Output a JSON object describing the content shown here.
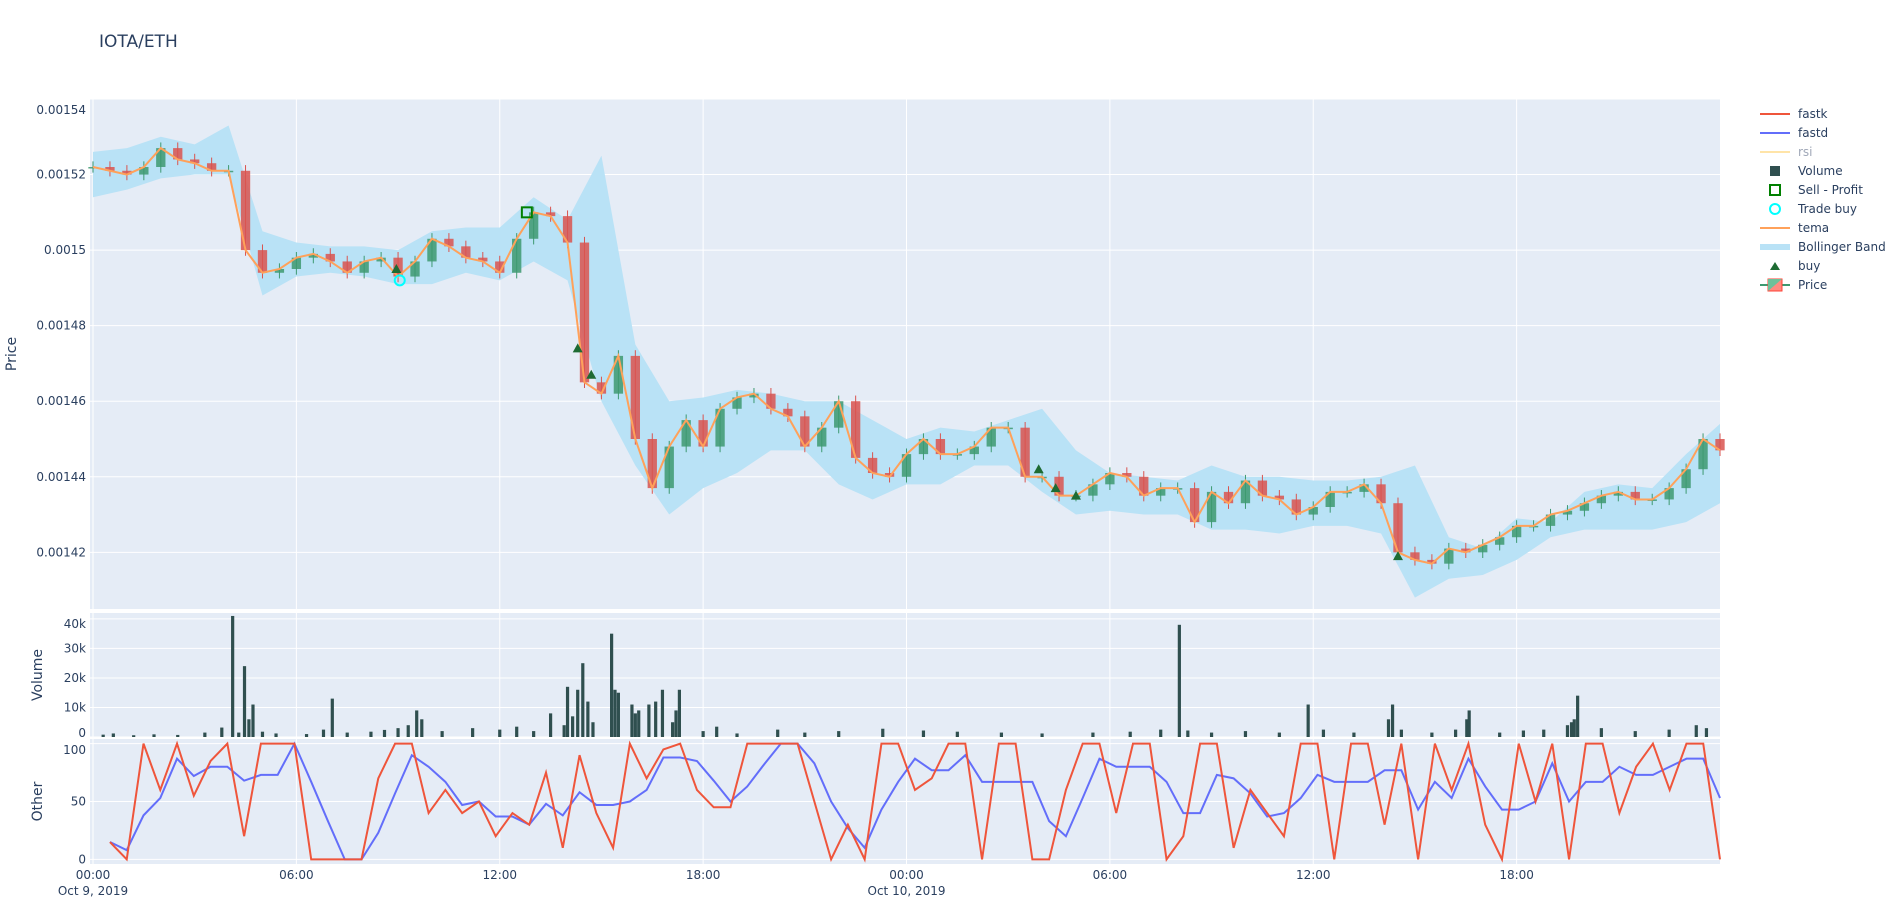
{
  "title": "IOTA/ETH",
  "legend": [
    {
      "name": "fastk",
      "symbol": "line",
      "color": "#EF553B"
    },
    {
      "name": "fastd",
      "symbol": "line",
      "color": "#636EFA"
    },
    {
      "name": "rsi",
      "symbol": "line",
      "color": "#FFE4A8",
      "hidden": true
    },
    {
      "name": "Volume",
      "symbol": "square",
      "color": "#2F4F4F"
    },
    {
      "name": "Sell - Profit",
      "symbol": "square-open",
      "color": "#008000"
    },
    {
      "name": "Trade buy",
      "symbol": "circle-open",
      "color": "#00FFFF"
    },
    {
      "name": "tema",
      "symbol": "line",
      "color": "#FFA15A"
    },
    {
      "name": "Bollinger Band",
      "symbol": "band",
      "color": "#B9E2F6"
    },
    {
      "name": "buy",
      "symbol": "triangle-up",
      "color": "#1E6B33"
    },
    {
      "name": "Price",
      "symbol": "candle",
      "color": "#3D9970"
    }
  ],
  "chart_data": [
    {
      "type": "candlestick",
      "ylabel": "Price",
      "ylim": [
        0.001405,
        0.00154
      ],
      "yticks": [
        "0.00142",
        "0.00144",
        "0.00146",
        "0.00148",
        "0.0015",
        "0.00152",
        "0.00154"
      ],
      "ytick_values": [
        0.00142,
        0.00144,
        0.00146,
        0.00148,
        0.0015,
        0.00152,
        0.00154
      ],
      "grid": true,
      "start": "2019-10-09 00:00",
      "interval_minutes": 30,
      "tema": [
        0.001522,
        0.001521,
        0.00152,
        0.001522,
        0.001527,
        0.001524,
        0.001523,
        0.001521,
        0.001521,
        0.0015,
        0.001494,
        0.001495,
        0.001498,
        0.001499,
        0.001497,
        0.001494,
        0.001497,
        0.001498,
        0.001493,
        0.001497,
        0.001503,
        0.001501,
        0.001498,
        0.001497,
        0.001494,
        0.001503,
        0.00151,
        0.001509,
        0.001502,
        0.001465,
        0.001462,
        0.001472,
        0.00145,
        0.001437,
        0.001448,
        0.001455,
        0.001448,
        0.001458,
        0.001461,
        0.001462,
        0.001458,
        0.001456,
        0.001448,
        0.001453,
        0.00146,
        0.001445,
        0.001441,
        0.00144,
        0.001446,
        0.00145,
        0.001446,
        0.001446,
        0.001448,
        0.001453,
        0.001453,
        0.00144,
        0.00144,
        0.001435,
        0.001435,
        0.001438,
        0.001441,
        0.00144,
        0.001435,
        0.001437,
        0.001437,
        0.001428,
        0.001436,
        0.001433,
        0.001439,
        0.001435,
        0.001434,
        0.00143,
        0.001432,
        0.001436,
        0.001436,
        0.001438,
        0.001433,
        0.00142,
        0.001418,
        0.001417,
        0.001421,
        0.00142,
        0.001422,
        0.001424,
        0.001427,
        0.001427,
        0.00143,
        0.001431,
        0.001433,
        0.001435,
        0.001436,
        0.001434,
        0.001434,
        0.001437,
        0.001442,
        0.00145,
        0.001447
      ],
      "bollinger_interval_minutes": 60,
      "bollinger_upper": [
        0.001526,
        0.001527,
        0.00153,
        0.001528,
        0.001533,
        0.001505,
        0.001502,
        0.001501,
        0.001501,
        0.0015,
        0.001505,
        0.001506,
        0.001506,
        0.001514,
        0.001508,
        0.001525,
        0.001475,
        0.00146,
        0.001461,
        0.001463,
        0.001462,
        0.00146,
        0.00146,
        0.001455,
        0.00145,
        0.001453,
        0.001452,
        0.001455,
        0.001458,
        0.001447,
        0.001441,
        0.00144,
        0.001439,
        0.001443,
        0.00144,
        0.00144,
        0.001439,
        0.001439,
        0.00144,
        0.001443,
        0.001424,
        0.001421,
        0.001429,
        0.001428,
        0.001436,
        0.001438,
        0.001437,
        0.001446,
        0.001454
      ],
      "bollinger_lower": [
        0.001514,
        0.001516,
        0.001519,
        0.00152,
        0.00152,
        0.001488,
        0.001493,
        0.001494,
        0.001493,
        0.001491,
        0.001491,
        0.001494,
        0.001492,
        0.001497,
        0.001492,
        0.00146,
        0.001443,
        0.00143,
        0.001437,
        0.001441,
        0.001447,
        0.001447,
        0.001438,
        0.001434,
        0.001438,
        0.001438,
        0.001443,
        0.001443,
        0.001436,
        0.00143,
        0.001431,
        0.00143,
        0.00143,
        0.001426,
        0.001426,
        0.001425,
        0.001427,
        0.001427,
        0.001425,
        0.001408,
        0.001413,
        0.001414,
        0.001418,
        0.001424,
        0.001426,
        0.001426,
        0.001426,
        0.001428,
        0.001433
      ],
      "buy_signals": [
        [
          8.95,
          0.001495
        ],
        [
          14.3,
          0.001474
        ],
        [
          14.7,
          0.001467
        ],
        [
          27.9,
          0.001442
        ],
        [
          28.4,
          0.001437
        ],
        [
          29.0,
          0.001435
        ],
        [
          38.5,
          0.001419
        ]
      ],
      "trade_buy": [
        [
          9.05,
          0.001492
        ]
      ],
      "sell_profit": [
        [
          12.8,
          0.00151
        ]
      ]
    },
    {
      "type": "bar",
      "ylabel": "Volume",
      "ylim": [
        0,
        42000
      ],
      "yticks": [
        "0",
        "10k",
        "20k",
        "30k",
        "40k"
      ],
      "ytick_values": [
        0,
        10000,
        20000,
        30000,
        40000
      ],
      "bars": [
        [
          0.3,
          800
        ],
        [
          0.6,
          1200
        ],
        [
          1.2,
          600
        ],
        [
          1.8,
          900
        ],
        [
          2.5,
          700
        ],
        [
          3.3,
          1500
        ],
        [
          3.8,
          3200
        ],
        [
          4.12,
          41000
        ],
        [
          4.3,
          1500
        ],
        [
          4.47,
          24000
        ],
        [
          4.6,
          6000
        ],
        [
          4.72,
          11000
        ],
        [
          5.0,
          1800
        ],
        [
          5.4,
          1200
        ],
        [
          6.3,
          1000
        ],
        [
          6.8,
          2500
        ],
        [
          7.06,
          13000
        ],
        [
          7.5,
          1500
        ],
        [
          8.2,
          1800
        ],
        [
          8.6,
          2400
        ],
        [
          9.0,
          3000
        ],
        [
          9.3,
          4000
        ],
        [
          9.55,
          9000
        ],
        [
          9.7,
          6000
        ],
        [
          10.3,
          2000
        ],
        [
          11.2,
          3000
        ],
        [
          12.0,
          2500
        ],
        [
          12.5,
          3500
        ],
        [
          13.0,
          2000
        ],
        [
          13.5,
          8000
        ],
        [
          13.9,
          4000
        ],
        [
          14.0,
          17000
        ],
        [
          14.15,
          7000
        ],
        [
          14.3,
          16000
        ],
        [
          14.45,
          25000
        ],
        [
          14.6,
          12000
        ],
        [
          14.75,
          5000
        ],
        [
          15.3,
          35000
        ],
        [
          15.4,
          16000
        ],
        [
          15.5,
          15000
        ],
        [
          15.9,
          11000
        ],
        [
          16.0,
          8000
        ],
        [
          16.1,
          9000
        ],
        [
          16.4,
          11000
        ],
        [
          16.6,
          12000
        ],
        [
          16.8,
          16000
        ],
        [
          17.1,
          5000
        ],
        [
          17.2,
          9000
        ],
        [
          17.3,
          16000
        ],
        [
          18.0,
          2000
        ],
        [
          18.4,
          3500
        ],
        [
          19.0,
          1200
        ],
        [
          20.2,
          2500
        ],
        [
          21.0,
          1500
        ],
        [
          22.0,
          2000
        ],
        [
          23.3,
          2800
        ],
        [
          24.5,
          2200
        ],
        [
          25.5,
          1800
        ],
        [
          26.8,
          1500
        ],
        [
          28.0,
          1200
        ],
        [
          29.5,
          1500
        ],
        [
          30.6,
          1800
        ],
        [
          31.5,
          2500
        ],
        [
          32.05,
          38000
        ],
        [
          32.3,
          2200
        ],
        [
          33.0,
          1500
        ],
        [
          34.0,
          2000
        ],
        [
          35.0,
          1500
        ],
        [
          35.85,
          11000
        ],
        [
          36.3,
          2500
        ],
        [
          37.2,
          1500
        ],
        [
          38.22,
          6000
        ],
        [
          38.34,
          11000
        ],
        [
          38.6,
          2500
        ],
        [
          39.5,
          1500
        ],
        [
          40.2,
          2500
        ],
        [
          40.53,
          6000
        ],
        [
          40.6,
          9000
        ],
        [
          41.5,
          1500
        ],
        [
          42.2,
          2200
        ],
        [
          42.8,
          2500
        ],
        [
          43.5,
          4000
        ],
        [
          43.62,
          5000
        ],
        [
          43.7,
          6000
        ],
        [
          43.8,
          14000
        ],
        [
          44.5,
          3000
        ],
        [
          45.5,
          2000
        ],
        [
          46.5,
          2500
        ],
        [
          47.3,
          4000
        ],
        [
          47.6,
          3000
        ]
      ],
      "color": "#2F4F4F"
    },
    {
      "type": "line",
      "ylabel": "Other",
      "ylim": [
        -4,
        104
      ],
      "yticks": [
        "0",
        "50",
        "100"
      ],
      "ytick_values": [
        0,
        50,
        100
      ],
      "start": "2019-10-09 00:30",
      "interval_minutes": 30,
      "series": [
        {
          "name": "fastk",
          "color": "#EF553B",
          "values": [
            15,
            0,
            100,
            60,
            100,
            55,
            85,
            100,
            20,
            100,
            100,
            100,
            0,
            0,
            0,
            0,
            70,
            100,
            100,
            40,
            60,
            40,
            50,
            20,
            40,
            30,
            75,
            10,
            90,
            40,
            10,
            100,
            70,
            95,
            100,
            60,
            45,
            45,
            100,
            100,
            100,
            100,
            50,
            0,
            30,
            0,
            100,
            100,
            60,
            70,
            100,
            100,
            0,
            100,
            100,
            0,
            0,
            60,
            100,
            100,
            40,
            100,
            100,
            0,
            20,
            100,
            100,
            10,
            60,
            40,
            20,
            100,
            100,
            0,
            100,
            100,
            30,
            100,
            0,
            100,
            60,
            100,
            30,
            0,
            100,
            50,
            100,
            0,
            100,
            100,
            40,
            80,
            100,
            60,
            100,
            100,
            0
          ]
        },
        {
          "name": "fastd",
          "color": "#636EFA",
          "values": [
            15,
            8,
            38,
            53,
            87,
            72,
            80,
            80,
            68,
            73,
            73,
            100,
            67,
            33,
            0,
            0,
            23,
            57,
            90,
            80,
            67,
            47,
            50,
            37,
            37,
            30,
            48,
            38,
            58,
            47,
            47,
            50,
            60,
            88,
            88,
            85,
            68,
            50,
            63,
            82,
            100,
            100,
            83,
            50,
            27,
            10,
            43,
            67,
            87,
            77,
            77,
            90,
            67,
            67,
            67,
            67,
            33,
            20,
            53,
            87,
            80,
            80,
            80,
            67,
            40,
            40,
            73,
            70,
            57,
            37,
            40,
            53,
            73,
            67,
            67,
            67,
            77,
            77,
            43,
            67,
            53,
            87,
            63,
            43,
            43,
            50,
            83,
            50,
            67,
            67,
            80,
            73,
            73,
            80,
            87,
            87,
            53
          ]
        }
      ]
    }
  ],
  "xaxis": {
    "ticks": [
      {
        "label": "00:00",
        "sub": "Oct 9, 2019",
        "hour": 0
      },
      {
        "label": "06:00",
        "sub": "",
        "hour": 6
      },
      {
        "label": "12:00",
        "sub": "",
        "hour": 12
      },
      {
        "label": "18:00",
        "sub": "",
        "hour": 18
      },
      {
        "label": "00:00",
        "sub": "Oct 10, 2019",
        "hour": 24
      },
      {
        "label": "06:00",
        "sub": "",
        "hour": 30
      },
      {
        "label": "12:00",
        "sub": "",
        "hour": 36
      },
      {
        "label": "18:00",
        "sub": "",
        "hour": 42
      }
    ]
  }
}
